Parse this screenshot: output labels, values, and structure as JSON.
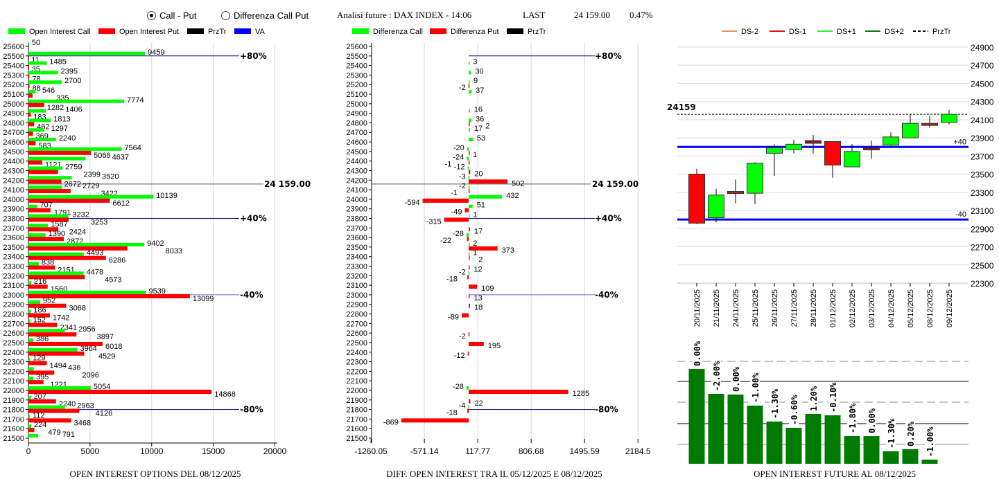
{
  "header": {
    "radio_call_put": "Call - Put",
    "radio_diff": "Differenza Call Put",
    "selected": "Call - Put",
    "title": "Analisi future : DAX INDEX - 14:06",
    "last_label": "LAST",
    "last_value": "24 159.00",
    "change": "0.47%"
  },
  "colors": {
    "call": "#00ff00",
    "put": "#ff0000",
    "przTr": "#000000",
    "va": "#0000ff",
    "oi_bar": "#007a00",
    "ds_minus2": "#e8906a",
    "ds_minus1": "#dd1111",
    "ds_plus1": "#33ee33",
    "ds_plus2": "#117711"
  },
  "chart_data": [
    {
      "type": "bar",
      "title": "OPEN INTEREST OPTIONS DEL 08/12/2025",
      "legend": [
        "Open Interest Call",
        "Open Interest Put",
        "PrzTr",
        "VA"
      ],
      "xlim": [
        0,
        20000
      ],
      "xticks": [
        "0",
        "5000",
        "10000",
        "15000",
        "20000"
      ],
      "strikes": [
        25600,
        25500,
        25400,
        25300,
        25200,
        25100,
        25000,
        24900,
        24800,
        24700,
        24600,
        24500,
        24400,
        24300,
        24200,
        24100,
        24000,
        23900,
        23800,
        23700,
        23600,
        23500,
        23400,
        23300,
        23200,
        23100,
        23000,
        22900,
        22800,
        22700,
        22600,
        22500,
        22400,
        22300,
        22200,
        22100,
        22000,
        21900,
        21800,
        21700,
        21600,
        21500
      ],
      "series": [
        {
          "name": "Open Interest Call",
          "values": [
            50,
            9459,
            1485,
            2395,
            2700,
            546,
            7774,
            1406,
            1813,
            1297,
            2240,
            7564,
            4637,
            2759,
            3520,
            2729,
            10139,
            707,
            3232,
            1587,
            1390,
            9402,
            4493,
            838,
            4478,
            216,
            9539,
            952,
            186,
            152,
            2956,
            386,
            3964,
            129,
            436,
            395,
            5054,
            207,
            2963,
            112,
            224,
            791
          ]
        },
        {
          "name": "Open Interest Put",
          "values": [
            null,
            11,
            35,
            78,
            88,
            335,
            1282,
            183,
            462,
            369,
            583,
            5068,
            1121,
            2399,
            2672,
            3422,
            6612,
            1791,
            3253,
            2424,
            2872,
            8033,
            6286,
            2151,
            4573,
            1560,
            13099,
            3068,
            1742,
            2341,
            3897,
            6018,
            4529,
            1494,
            2096,
            1221,
            14868,
            2240,
            4126,
            3468,
            479,
            null
          ]
        }
      ],
      "ref_lines": [
        {
          "label": "+80%",
          "strike": 25500,
          "color": "#000080"
        },
        {
          "label": "24 159.00",
          "strike": 24159,
          "color": "#555555"
        },
        {
          "label": "+40%",
          "strike": 23800,
          "color": "#000080"
        },
        {
          "label": "-40%",
          "strike": 23000,
          "color": "#6666dd"
        },
        {
          "label": "-80%",
          "strike": 21800,
          "color": "#000080"
        }
      ]
    },
    {
      "type": "bar",
      "title": "DIFF. OPEN INTEREST TRA IL 05/12/2025 E 08/12/2025",
      "legend": [
        "Differenza Call",
        "Differenza Put",
        "PrzTr"
      ],
      "xlim": [
        -1260.05,
        2184.5
      ],
      "xticks": [
        "-1260.05",
        "-571.14",
        "117.77",
        "806.68",
        "1495.59",
        "2184.5"
      ],
      "series": [
        {
          "name": "Differenza Call",
          "values": [
            null,
            null,
            3,
            30,
            9,
            37,
            null,
            16,
            36,
            17,
            53,
            -20,
            -24,
            -12,
            -3,
            -2,
            432,
            51,
            1,
            null,
            -28,
            2,
            1,
            null,
            -2,
            null,
            null,
            null,
            null,
            null,
            null,
            null,
            null,
            null,
            null,
            null,
            -28,
            null,
            -4,
            null,
            null,
            null
          ]
        },
        {
          "name": "Differenza Put",
          "values": [
            null,
            null,
            null,
            null,
            -2,
            null,
            null,
            null,
            2,
            null,
            null,
            1,
            -1,
            20,
            502,
            -1,
            -594,
            -49,
            -315,
            17,
            -22,
            373,
            2,
            12,
            -18,
            109,
            13,
            18,
            -89,
            null,
            -2,
            195,
            -12,
            null,
            null,
            null,
            1285,
            22,
            -18,
            -869,
            null,
            null
          ]
        }
      ]
    },
    {
      "type": "candlestick",
      "legend": [
        "DS-2",
        "DS-1",
        "DS+1",
        "DS+2",
        "PrzTr"
      ],
      "ylim": [
        22300,
        24900
      ],
      "yticks": [
        "24900",
        "24700",
        "24500",
        "24300",
        "24100",
        "23900",
        "23700",
        "23500",
        "23300",
        "23100",
        "22900",
        "22700",
        "22500",
        "22300"
      ],
      "przTr": 24159,
      "przTr_label": "24159",
      "va_lines": [
        {
          "label": "+40",
          "value": 23800
        },
        {
          "label": "-40",
          "value": 23000
        }
      ],
      "dates": [
        "20/11/2025",
        "21/11/2025",
        "24/11/2025",
        "25/11/2025",
        "26/11/2025",
        "27/11/2025",
        "28/11/2025",
        "01/12/2025",
        "02/12/2025",
        "03/12/2025",
        "04/12/2025",
        "05/12/2025",
        "08/12/2025",
        "09/12/2025"
      ],
      "ohlc": [
        [
          23500,
          23560,
          22950,
          22960
        ],
        [
          23020,
          23340,
          22970,
          23270
        ],
        [
          23310,
          23440,
          23180,
          23290
        ],
        [
          23290,
          23630,
          23170,
          23620
        ],
        [
          23730,
          23830,
          23480,
          23790
        ],
        [
          23770,
          23880,
          23730,
          23830
        ],
        [
          23840,
          23930,
          23730,
          23870
        ],
        [
          23860,
          23860,
          23460,
          23600
        ],
        [
          23580,
          23830,
          23580,
          23750
        ],
        [
          23770,
          23870,
          23670,
          23790
        ],
        [
          23820,
          23960,
          23810,
          23910
        ],
        [
          23900,
          24160,
          23900,
          24060
        ],
        [
          24060,
          24140,
          24010,
          24040
        ],
        [
          24070,
          24210,
          24050,
          24160
        ]
      ]
    },
    {
      "type": "bar",
      "title": "OPEN INTEREST FUTURE AL 08/12/2025",
      "values_relative": [
        137,
        101,
        100,
        84,
        61,
        52,
        72,
        70,
        40,
        40,
        18,
        21,
        6
      ],
      "labels": [
        "0.00%",
        "-2.00%",
        "0.00%",
        "-1.00%",
        "-1.30%",
        "-0.60%",
        "1.20%",
        "-0.10%",
        "-1.80%",
        "0.00%",
        "-1.30%",
        "0.20%",
        "-1.00%"
      ]
    }
  ]
}
